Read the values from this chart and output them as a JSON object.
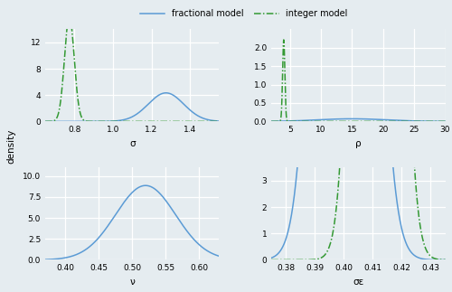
{
  "background_color": "#e5ecf0",
  "grid_color": "white",
  "blue_color": "#5b9bd5",
  "green_color": "#339933",
  "legend_labels": [
    "fractional model",
    "integer model"
  ],
  "label_fontsize": 7.5,
  "tick_fontsize": 6.5,
  "ylabel": "density",
  "sigma": {
    "blue_mean": 1.275,
    "blue_std": 0.092,
    "green_mean": 0.775,
    "green_std": 0.025,
    "xlim": [
      0.65,
      1.55
    ],
    "xlabel": "σ",
    "ylim": [
      0,
      14
    ],
    "yticks": [
      0,
      4,
      8,
      12
    ]
  },
  "rho": {
    "blue_mean": 15.0,
    "blue_std": 5.5,
    "green_mean": 4.0,
    "green_std": 0.18,
    "xlim": [
      2,
      30
    ],
    "xlabel": "ρ",
    "ylim": [
      0,
      2.5
    ],
    "yticks": [
      0.0,
      0.5,
      1.0,
      1.5,
      2.0
    ]
  },
  "nu": {
    "blue_mean": 0.52,
    "blue_std": 0.045,
    "xlim": [
      0.37,
      0.63
    ],
    "xlabel": "ν",
    "ylim": [
      0,
      11
    ],
    "yticks": [
      0.0,
      2.5,
      5.0,
      7.5,
      10.0
    ]
  },
  "sigma_eps": {
    "blue_mean": 0.4005,
    "blue_std": 0.007,
    "green_mean": 0.4115,
    "green_std": 0.0052,
    "xlim": [
      0.375,
      0.435
    ],
    "xlabel": "σε",
    "ylim": [
      0,
      3.5
    ],
    "yticks": [
      0,
      1,
      2,
      3
    ]
  }
}
